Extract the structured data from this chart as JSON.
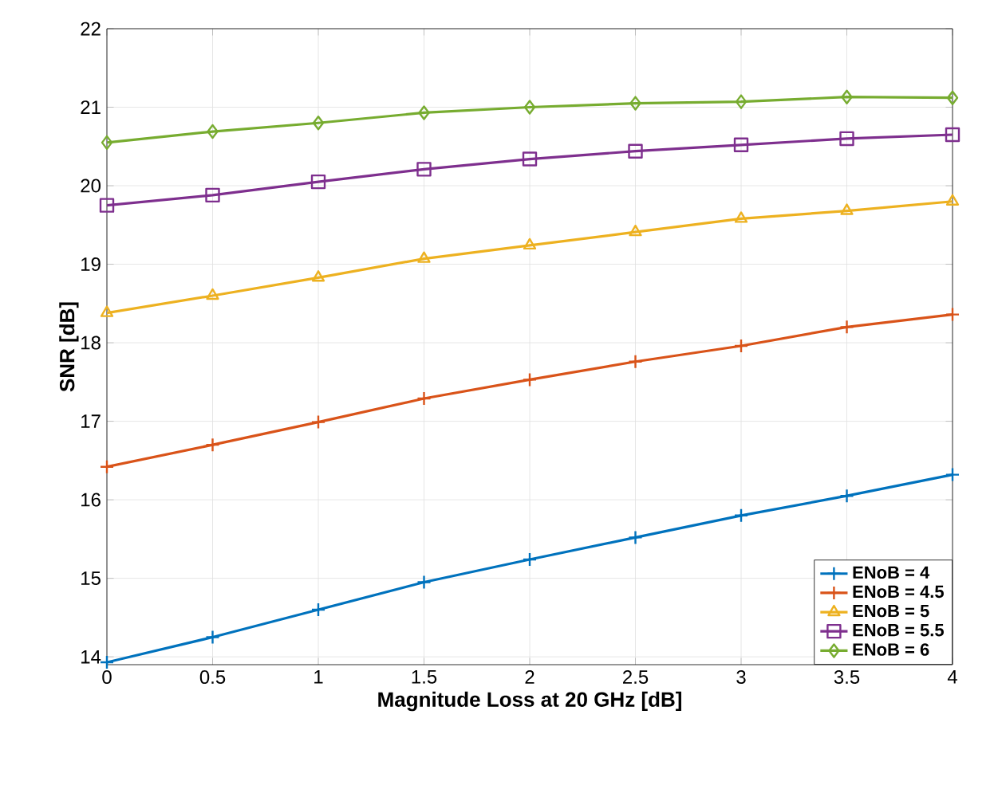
{
  "chart_data": {
    "type": "line",
    "xlabel": "Magnitude Loss at 20 GHz [dB]",
    "ylabel": "SNR [dB]",
    "x": [
      0,
      0.5,
      1,
      1.5,
      2,
      2.5,
      3,
      3.5,
      4
    ],
    "series": [
      {
        "name": "ENoB = 4",
        "color": "#0072bd",
        "marker": "cross",
        "values": [
          13.93,
          14.25,
          14.6,
          14.95,
          15.24,
          15.52,
          15.8,
          16.05,
          16.32
        ]
      },
      {
        "name": "ENoB = 4.5",
        "color": "#d95319",
        "marker": "cross",
        "values": [
          16.42,
          16.7,
          16.99,
          17.29,
          17.53,
          17.76,
          17.96,
          18.2,
          18.36
        ]
      },
      {
        "name": "ENoB = 5",
        "color": "#edb120",
        "marker": "triangle",
        "values": [
          18.38,
          18.6,
          18.83,
          19.07,
          19.24,
          19.41,
          19.58,
          19.68,
          19.8
        ]
      },
      {
        "name": "ENoB = 5.5",
        "color": "#7e2f8e",
        "marker": "square",
        "values": [
          19.75,
          19.88,
          20.05,
          20.21,
          20.34,
          20.44,
          20.52,
          20.6,
          20.65
        ]
      },
      {
        "name": "ENoB = 6",
        "color": "#77ac30",
        "marker": "diamond",
        "values": [
          20.55,
          20.69,
          20.8,
          20.93,
          21.0,
          21.05,
          21.07,
          21.13,
          21.12
        ]
      }
    ],
    "xlim": [
      0,
      4
    ],
    "ylim": [
      13.9,
      22
    ],
    "xticks": [
      0,
      0.5,
      1,
      1.5,
      2,
      2.5,
      3,
      3.5,
      4
    ],
    "yticks": [
      14,
      15,
      16,
      17,
      18,
      19,
      20,
      21,
      22
    ],
    "grid": true,
    "legend": "bottom right",
    "line_style": "solid"
  }
}
